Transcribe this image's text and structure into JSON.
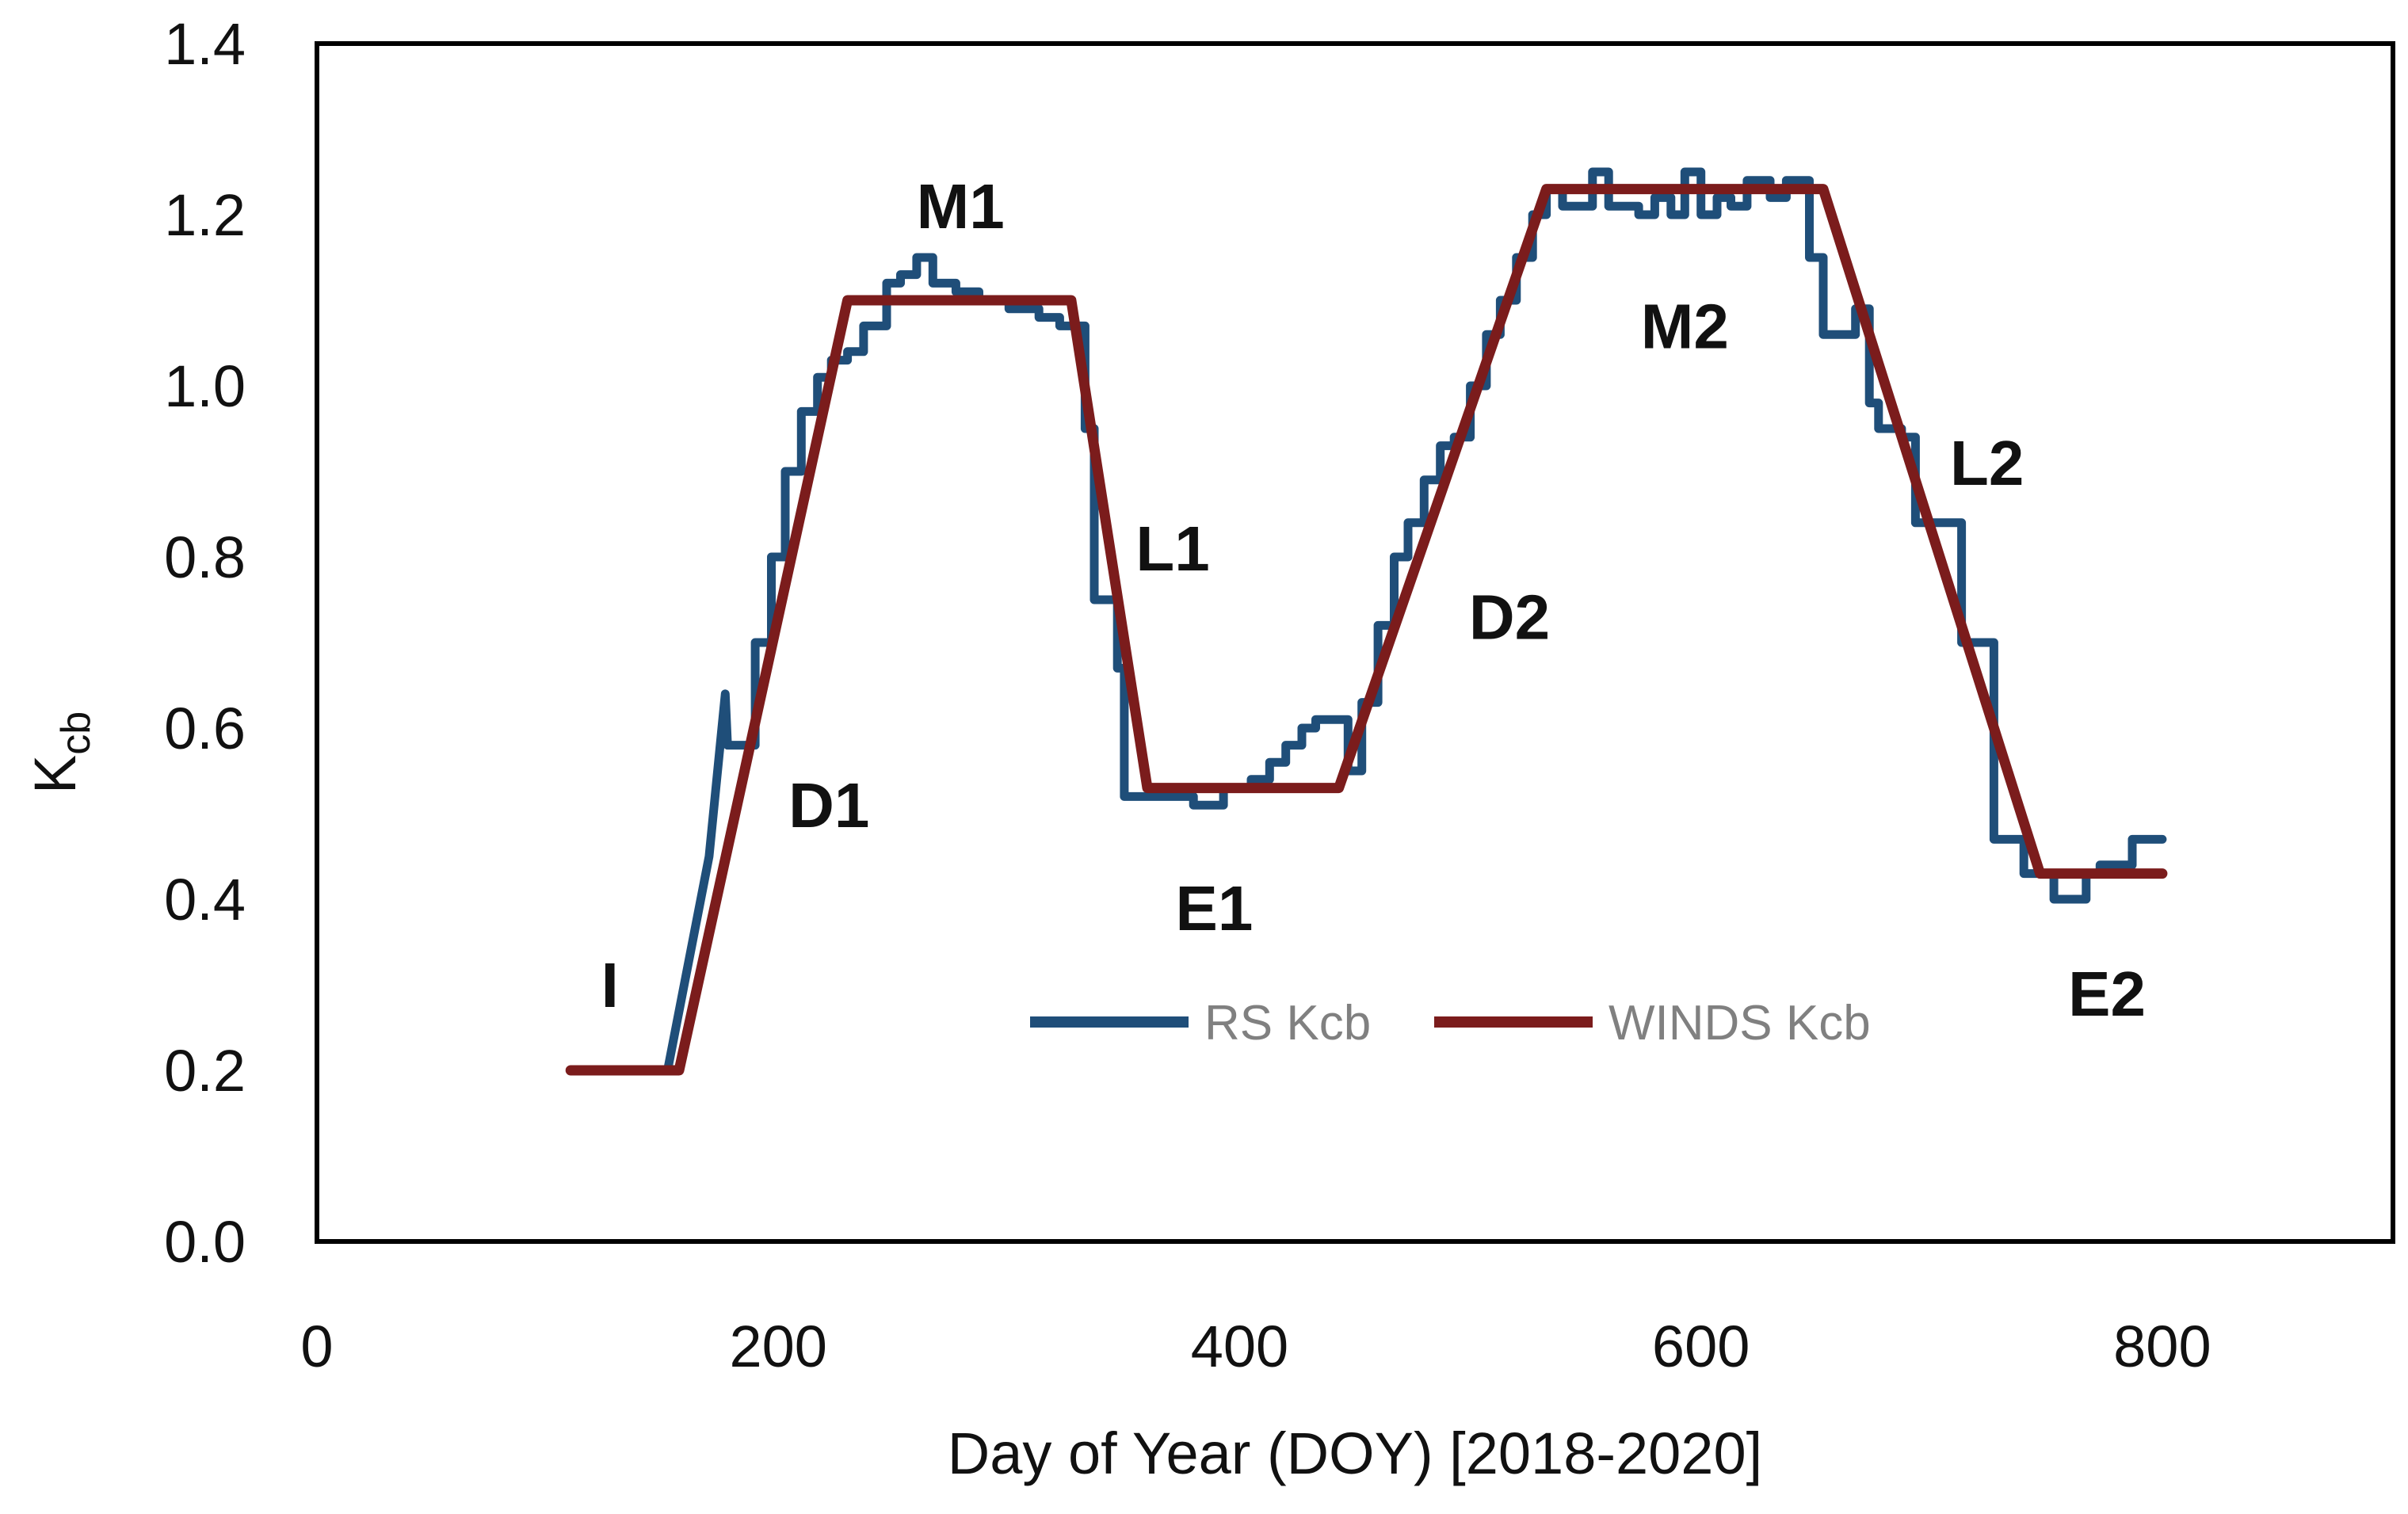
{
  "chart_data": {
    "type": "line",
    "title": "",
    "xlabel": "Day of Year (DOY) [2018-2020]",
    "ylabel": {
      "main": "K",
      "sub": "cb"
    },
    "xlim": [
      0,
      900
    ],
    "ylim": [
      0,
      1.4
    ],
    "xticks": [
      "0",
      "200",
      "400",
      "600",
      "800"
    ],
    "yticks": [
      "0.0",
      "0.2",
      "0.4",
      "0.6",
      "0.8",
      "1.0",
      "1.2",
      "1.4"
    ],
    "grid": false,
    "legend_position": "bottom-center-inside",
    "series": [
      {
        "name": "RS Kcb",
        "color": "#1f4e79",
        "step": true,
        "points": [
          [
            110,
            0.2
          ],
          [
            152,
            0.2
          ],
          [
            170,
            0.45
          ],
          [
            177,
            0.64
          ],
          [
            178,
            0.58
          ],
          [
            190,
            0.58
          ],
          [
            190,
            0.7
          ],
          [
            197,
            0.7
          ],
          [
            197,
            0.8
          ],
          [
            203,
            0.8
          ],
          [
            203,
            0.9
          ],
          [
            210,
            0.9
          ],
          [
            210,
            0.97
          ],
          [
            217,
            0.97
          ],
          [
            217,
            1.01
          ],
          [
            223,
            1.01
          ],
          [
            223,
            1.03
          ],
          [
            230,
            1.03
          ],
          [
            230,
            1.04
          ],
          [
            237,
            1.04
          ],
          [
            237,
            1.07
          ],
          [
            247,
            1.07
          ],
          [
            247,
            1.12
          ],
          [
            253,
            1.12
          ],
          [
            253,
            1.13
          ],
          [
            260,
            1.13
          ],
          [
            260,
            1.15
          ],
          [
            267,
            1.15
          ],
          [
            267,
            1.12
          ],
          [
            277,
            1.12
          ],
          [
            277,
            1.11
          ],
          [
            287,
            1.11
          ],
          [
            287,
            1.1
          ],
          [
            300,
            1.1
          ],
          [
            300,
            1.09
          ],
          [
            313,
            1.09
          ],
          [
            313,
            1.08
          ],
          [
            322,
            1.08
          ],
          [
            322,
            1.07
          ],
          [
            333,
            1.07
          ],
          [
            333,
            0.95
          ],
          [
            337,
            0.95
          ],
          [
            337,
            0.75
          ],
          [
            347,
            0.75
          ],
          [
            347,
            0.67
          ],
          [
            350,
            0.67
          ],
          [
            350,
            0.52
          ],
          [
            380,
            0.52
          ],
          [
            380,
            0.51
          ],
          [
            393,
            0.51
          ],
          [
            393,
            0.53
          ],
          [
            405,
            0.53
          ],
          [
            405,
            0.54
          ],
          [
            413,
            0.54
          ],
          [
            413,
            0.56
          ],
          [
            420,
            0.56
          ],
          [
            420,
            0.58
          ],
          [
            427,
            0.58
          ],
          [
            427,
            0.6
          ],
          [
            433,
            0.6
          ],
          [
            433,
            0.61
          ],
          [
            447,
            0.61
          ],
          [
            447,
            0.55
          ],
          [
            453,
            0.55
          ],
          [
            453,
            0.63
          ],
          [
            460,
            0.63
          ],
          [
            460,
            0.72
          ],
          [
            467,
            0.72
          ],
          [
            467,
            0.8
          ],
          [
            473,
            0.8
          ],
          [
            473,
            0.84
          ],
          [
            480,
            0.84
          ],
          [
            480,
            0.89
          ],
          [
            487,
            0.89
          ],
          [
            487,
            0.93
          ],
          [
            493,
            0.93
          ],
          [
            493,
            0.94
          ],
          [
            500,
            0.94
          ],
          [
            500,
            1.0
          ],
          [
            507,
            1.0
          ],
          [
            507,
            1.06
          ],
          [
            513,
            1.06
          ],
          [
            513,
            1.1
          ],
          [
            520,
            1.1
          ],
          [
            520,
            1.15
          ],
          [
            527,
            1.15
          ],
          [
            527,
            1.2
          ],
          [
            533,
            1.2
          ],
          [
            533,
            1.23
          ],
          [
            540,
            1.23
          ],
          [
            540,
            1.21
          ],
          [
            553,
            1.21
          ],
          [
            553,
            1.25
          ],
          [
            560,
            1.25
          ],
          [
            560,
            1.21
          ],
          [
            573,
            1.21
          ],
          [
            573,
            1.2
          ],
          [
            580,
            1.2
          ],
          [
            580,
            1.22
          ],
          [
            587,
            1.22
          ],
          [
            587,
            1.2
          ],
          [
            593,
            1.2
          ],
          [
            593,
            1.25
          ],
          [
            600,
            1.25
          ],
          [
            600,
            1.2
          ],
          [
            607,
            1.2
          ],
          [
            607,
            1.22
          ],
          [
            613,
            1.22
          ],
          [
            613,
            1.21
          ],
          [
            620,
            1.21
          ],
          [
            620,
            1.24
          ],
          [
            630,
            1.24
          ],
          [
            630,
            1.22
          ],
          [
            637,
            1.22
          ],
          [
            637,
            1.24
          ],
          [
            647,
            1.24
          ],
          [
            647,
            1.15
          ],
          [
            653,
            1.15
          ],
          [
            653,
            1.06
          ],
          [
            667,
            1.06
          ],
          [
            667,
            1.09
          ],
          [
            673,
            1.09
          ],
          [
            673,
            0.98
          ],
          [
            677,
            0.98
          ],
          [
            677,
            0.95
          ],
          [
            687,
            0.95
          ],
          [
            687,
            0.94
          ],
          [
            693,
            0.94
          ],
          [
            693,
            0.84
          ],
          [
            713,
            0.84
          ],
          [
            713,
            0.7
          ],
          [
            727,
            0.7
          ],
          [
            727,
            0.47
          ],
          [
            740,
            0.47
          ],
          [
            740,
            0.43
          ],
          [
            753,
            0.43
          ],
          [
            753,
            0.4
          ],
          [
            767,
            0.4
          ],
          [
            767,
            0.43
          ],
          [
            773,
            0.43
          ],
          [
            773,
            0.44
          ],
          [
            787,
            0.44
          ],
          [
            787,
            0.47
          ],
          [
            800,
            0.47
          ]
        ]
      },
      {
        "name": "WINDS Kcb",
        "color": "#7b1c1c",
        "step": false,
        "points": [
          [
            110,
            0.2
          ],
          [
            157,
            0.2
          ],
          [
            230,
            1.1
          ],
          [
            327,
            1.1
          ],
          [
            360,
            0.53
          ],
          [
            443,
            0.53
          ],
          [
            533,
            1.23
          ],
          [
            653,
            1.23
          ],
          [
            747,
            0.43
          ],
          [
            800,
            0.43
          ]
        ]
      }
    ],
    "annotations": [
      {
        "text": "I",
        "x": 127,
        "y": 0.3
      },
      {
        "text": "D1",
        "x": 222,
        "y": 0.51
      },
      {
        "text": "M1",
        "x": 279,
        "y": 1.21
      },
      {
        "text": "L1",
        "x": 371,
        "y": 0.81
      },
      {
        "text": "E1",
        "x": 389,
        "y": 0.39
      },
      {
        "text": "D2",
        "x": 517,
        "y": 0.73
      },
      {
        "text": "M2",
        "x": 593,
        "y": 1.07
      },
      {
        "text": "L2",
        "x": 724,
        "y": 0.91
      },
      {
        "text": "E2",
        "x": 776,
        "y": 0.29
      }
    ]
  }
}
